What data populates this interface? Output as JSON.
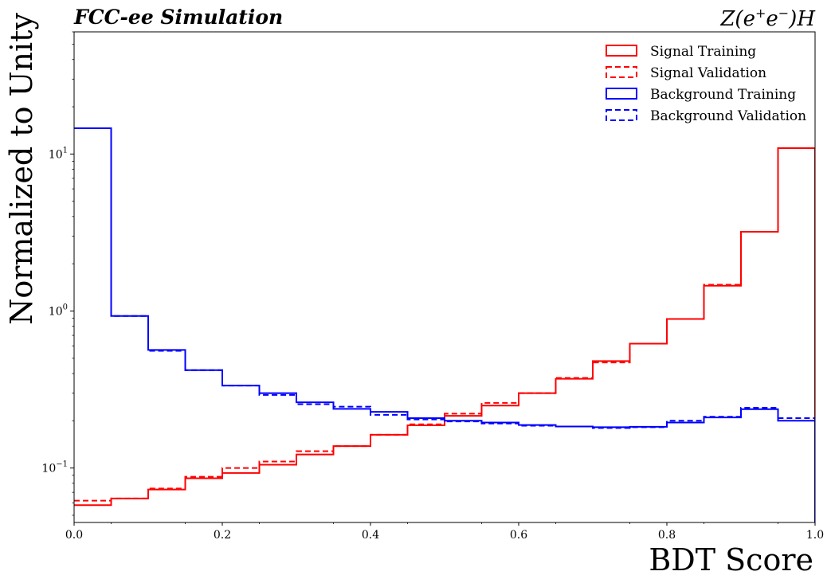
{
  "chart_data": {
    "type": "histogram-step",
    "title_left": "FCC-ee Simulation",
    "title_right_parts": [
      "Z(e",
      "+",
      "e",
      "−",
      ")H"
    ],
    "xlabel": "BDT Score",
    "ylabel": "Normalized to Unity",
    "xlim": [
      0.0,
      1.0
    ],
    "ylim": [
      0.045,
      60
    ],
    "yscale": "log",
    "bin_edges": [
      0.0,
      0.05,
      0.1,
      0.15,
      0.2,
      0.25,
      0.3,
      0.35,
      0.4,
      0.45,
      0.5,
      0.55,
      0.6,
      0.65,
      0.7,
      0.75,
      0.8,
      0.85,
      0.9,
      0.95,
      1.0
    ],
    "x_ticks": [
      {
        "value": 0.0,
        "label": "0.0"
      },
      {
        "value": 0.2,
        "label": "0.2"
      },
      {
        "value": 0.4,
        "label": "0.4"
      },
      {
        "value": 0.6,
        "label": "0.6"
      },
      {
        "value": 0.8,
        "label": "0.8"
      },
      {
        "value": 1.0,
        "label": "1.0"
      }
    ],
    "y_ticks": [
      {
        "value": 0.1,
        "base": "10",
        "exp": "−1"
      },
      {
        "value": 1,
        "base": "10",
        "exp": "0"
      },
      {
        "value": 10,
        "base": "10",
        "exp": "1"
      }
    ],
    "legend_position": "top-right",
    "series": [
      {
        "name": "Signal Training",
        "color": "#ff0000",
        "style": "solid",
        "values": [
          0.058,
          0.064,
          0.073,
          0.086,
          0.093,
          0.105,
          0.122,
          0.138,
          0.163,
          0.187,
          0.215,
          0.25,
          0.3,
          0.37,
          0.48,
          0.62,
          0.89,
          1.45,
          3.2,
          10.9
        ]
      },
      {
        "name": "Signal Validation",
        "color": "#ff0000",
        "style": "dashed",
        "values": [
          0.062,
          0.064,
          0.074,
          0.088,
          0.1,
          0.11,
          0.128,
          0.138,
          0.163,
          0.19,
          0.222,
          0.26,
          0.3,
          0.375,
          0.47,
          0.62,
          0.89,
          1.47,
          3.2,
          10.9
        ]
      },
      {
        "name": "Background Training",
        "color": "#0000ff",
        "style": "solid",
        "values": [
          14.6,
          0.93,
          0.565,
          0.42,
          0.335,
          0.3,
          0.262,
          0.238,
          0.228,
          0.208,
          0.2,
          0.195,
          0.188,
          0.184,
          0.182,
          0.183,
          0.195,
          0.21,
          0.237,
          0.2
        ]
      },
      {
        "name": "Background Validation",
        "color": "#0000ff",
        "style": "dashed",
        "values": [
          14.6,
          0.93,
          0.558,
          0.42,
          0.335,
          0.292,
          0.255,
          0.246,
          0.218,
          0.204,
          0.198,
          0.192,
          0.186,
          0.184,
          0.18,
          0.182,
          0.2,
          0.212,
          0.242,
          0.208
        ]
      }
    ]
  }
}
